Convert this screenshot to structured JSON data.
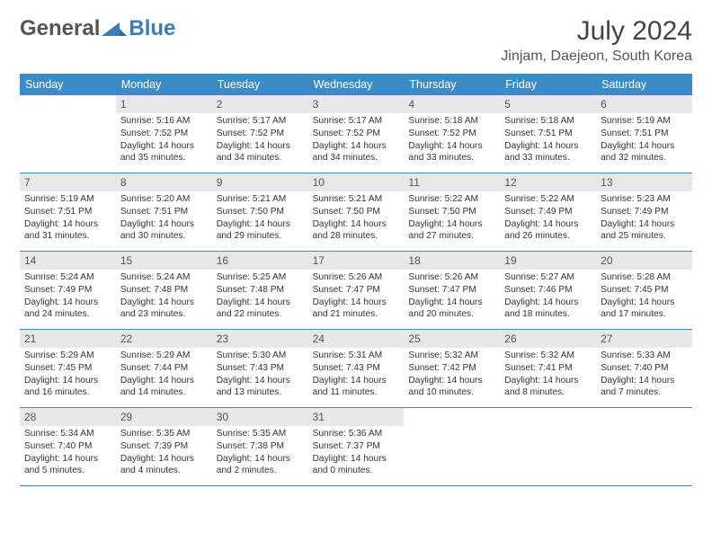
{
  "brand": {
    "part1": "General",
    "part2": "Blue"
  },
  "title": "July 2024",
  "location": "Jinjam, Daejeon, South Korea",
  "colors": {
    "header_bg": "#3b8bc9",
    "daynum_bg": "#e8e8e8",
    "text": "#333333",
    "brand_blue": "#3b7cbf"
  },
  "day_names": [
    "Sunday",
    "Monday",
    "Tuesday",
    "Wednesday",
    "Thursday",
    "Friday",
    "Saturday"
  ],
  "weeks": [
    [
      {
        "n": "",
        "sr": "",
        "ss": "",
        "dl": ""
      },
      {
        "n": "1",
        "sr": "Sunrise: 5:16 AM",
        "ss": "Sunset: 7:52 PM",
        "dl": "Daylight: 14 hours and 35 minutes."
      },
      {
        "n": "2",
        "sr": "Sunrise: 5:17 AM",
        "ss": "Sunset: 7:52 PM",
        "dl": "Daylight: 14 hours and 34 minutes."
      },
      {
        "n": "3",
        "sr": "Sunrise: 5:17 AM",
        "ss": "Sunset: 7:52 PM",
        "dl": "Daylight: 14 hours and 34 minutes."
      },
      {
        "n": "4",
        "sr": "Sunrise: 5:18 AM",
        "ss": "Sunset: 7:52 PM",
        "dl": "Daylight: 14 hours and 33 minutes."
      },
      {
        "n": "5",
        "sr": "Sunrise: 5:18 AM",
        "ss": "Sunset: 7:51 PM",
        "dl": "Daylight: 14 hours and 33 minutes."
      },
      {
        "n": "6",
        "sr": "Sunrise: 5:19 AM",
        "ss": "Sunset: 7:51 PM",
        "dl": "Daylight: 14 hours and 32 minutes."
      }
    ],
    [
      {
        "n": "7",
        "sr": "Sunrise: 5:19 AM",
        "ss": "Sunset: 7:51 PM",
        "dl": "Daylight: 14 hours and 31 minutes."
      },
      {
        "n": "8",
        "sr": "Sunrise: 5:20 AM",
        "ss": "Sunset: 7:51 PM",
        "dl": "Daylight: 14 hours and 30 minutes."
      },
      {
        "n": "9",
        "sr": "Sunrise: 5:21 AM",
        "ss": "Sunset: 7:50 PM",
        "dl": "Daylight: 14 hours and 29 minutes."
      },
      {
        "n": "10",
        "sr": "Sunrise: 5:21 AM",
        "ss": "Sunset: 7:50 PM",
        "dl": "Daylight: 14 hours and 28 minutes."
      },
      {
        "n": "11",
        "sr": "Sunrise: 5:22 AM",
        "ss": "Sunset: 7:50 PM",
        "dl": "Daylight: 14 hours and 27 minutes."
      },
      {
        "n": "12",
        "sr": "Sunrise: 5:22 AM",
        "ss": "Sunset: 7:49 PM",
        "dl": "Daylight: 14 hours and 26 minutes."
      },
      {
        "n": "13",
        "sr": "Sunrise: 5:23 AM",
        "ss": "Sunset: 7:49 PM",
        "dl": "Daylight: 14 hours and 25 minutes."
      }
    ],
    [
      {
        "n": "14",
        "sr": "Sunrise: 5:24 AM",
        "ss": "Sunset: 7:49 PM",
        "dl": "Daylight: 14 hours and 24 minutes."
      },
      {
        "n": "15",
        "sr": "Sunrise: 5:24 AM",
        "ss": "Sunset: 7:48 PM",
        "dl": "Daylight: 14 hours and 23 minutes."
      },
      {
        "n": "16",
        "sr": "Sunrise: 5:25 AM",
        "ss": "Sunset: 7:48 PM",
        "dl": "Daylight: 14 hours and 22 minutes."
      },
      {
        "n": "17",
        "sr": "Sunrise: 5:26 AM",
        "ss": "Sunset: 7:47 PM",
        "dl": "Daylight: 14 hours and 21 minutes."
      },
      {
        "n": "18",
        "sr": "Sunrise: 5:26 AM",
        "ss": "Sunset: 7:47 PM",
        "dl": "Daylight: 14 hours and 20 minutes."
      },
      {
        "n": "19",
        "sr": "Sunrise: 5:27 AM",
        "ss": "Sunset: 7:46 PM",
        "dl": "Daylight: 14 hours and 18 minutes."
      },
      {
        "n": "20",
        "sr": "Sunrise: 5:28 AM",
        "ss": "Sunset: 7:45 PM",
        "dl": "Daylight: 14 hours and 17 minutes."
      }
    ],
    [
      {
        "n": "21",
        "sr": "Sunrise: 5:29 AM",
        "ss": "Sunset: 7:45 PM",
        "dl": "Daylight: 14 hours and 16 minutes."
      },
      {
        "n": "22",
        "sr": "Sunrise: 5:29 AM",
        "ss": "Sunset: 7:44 PM",
        "dl": "Daylight: 14 hours and 14 minutes."
      },
      {
        "n": "23",
        "sr": "Sunrise: 5:30 AM",
        "ss": "Sunset: 7:43 PM",
        "dl": "Daylight: 14 hours and 13 minutes."
      },
      {
        "n": "24",
        "sr": "Sunrise: 5:31 AM",
        "ss": "Sunset: 7:43 PM",
        "dl": "Daylight: 14 hours and 11 minutes."
      },
      {
        "n": "25",
        "sr": "Sunrise: 5:32 AM",
        "ss": "Sunset: 7:42 PM",
        "dl": "Daylight: 14 hours and 10 minutes."
      },
      {
        "n": "26",
        "sr": "Sunrise: 5:32 AM",
        "ss": "Sunset: 7:41 PM",
        "dl": "Daylight: 14 hours and 8 minutes."
      },
      {
        "n": "27",
        "sr": "Sunrise: 5:33 AM",
        "ss": "Sunset: 7:40 PM",
        "dl": "Daylight: 14 hours and 7 minutes."
      }
    ],
    [
      {
        "n": "28",
        "sr": "Sunrise: 5:34 AM",
        "ss": "Sunset: 7:40 PM",
        "dl": "Daylight: 14 hours and 5 minutes."
      },
      {
        "n": "29",
        "sr": "Sunrise: 5:35 AM",
        "ss": "Sunset: 7:39 PM",
        "dl": "Daylight: 14 hours and 4 minutes."
      },
      {
        "n": "30",
        "sr": "Sunrise: 5:35 AM",
        "ss": "Sunset: 7:38 PM",
        "dl": "Daylight: 14 hours and 2 minutes."
      },
      {
        "n": "31",
        "sr": "Sunrise: 5:36 AM",
        "ss": "Sunset: 7:37 PM",
        "dl": "Daylight: 14 hours and 0 minutes."
      },
      {
        "n": "",
        "sr": "",
        "ss": "",
        "dl": ""
      },
      {
        "n": "",
        "sr": "",
        "ss": "",
        "dl": ""
      },
      {
        "n": "",
        "sr": "",
        "ss": "",
        "dl": ""
      }
    ]
  ]
}
